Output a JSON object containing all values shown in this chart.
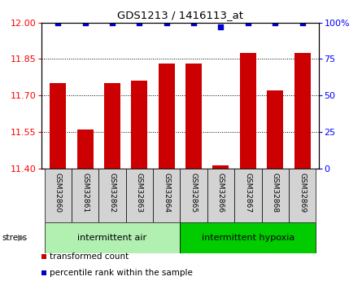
{
  "title": "GDS1213 / 1416113_at",
  "samples": [
    "GSM32860",
    "GSM32861",
    "GSM32862",
    "GSM32863",
    "GSM32864",
    "GSM32865",
    "GSM32866",
    "GSM32867",
    "GSM32868",
    "GSM32869"
  ],
  "bar_values": [
    11.75,
    11.56,
    11.75,
    11.76,
    11.83,
    11.83,
    11.415,
    11.875,
    11.72,
    11.875
  ],
  "percentile_values": [
    100,
    100,
    100,
    100,
    100,
    100,
    97,
    100,
    100,
    100
  ],
  "ylim_left": [
    11.4,
    12.0
  ],
  "ylim_right": [
    0,
    100
  ],
  "yticks_left": [
    11.4,
    11.55,
    11.7,
    11.85,
    12.0
  ],
  "yticks_right": [
    0,
    25,
    50,
    75,
    100
  ],
  "bar_color": "#cc0000",
  "dot_color": "#0000cc",
  "bar_width": 0.6,
  "groups": [
    {
      "label": "intermittent air",
      "start": 0,
      "end": 5,
      "color": "#b2f0b2"
    },
    {
      "label": "intermittent hypoxia",
      "start": 5,
      "end": 10,
      "color": "#00cc00"
    }
  ],
  "stress_label": "stress",
  "legend_items": [
    {
      "color": "#cc0000",
      "label": "transformed count"
    },
    {
      "color": "#0000cc",
      "label": "percentile rank within the sample"
    }
  ],
  "tick_label_bg": "#d3d3d3",
  "spine_color": "#000000"
}
